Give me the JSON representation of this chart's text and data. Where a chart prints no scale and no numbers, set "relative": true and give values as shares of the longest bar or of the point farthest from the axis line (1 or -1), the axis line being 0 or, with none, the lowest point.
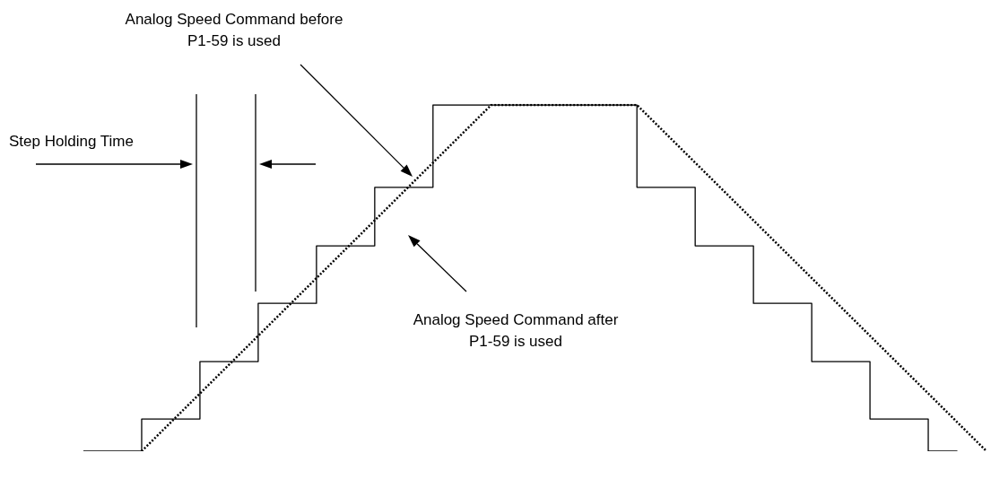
{
  "chart_data": {
    "type": "step",
    "relative": true,
    "grid": false,
    "legend": false,
    "marker": "none",
    "categories": [
      null,
      null,
      null,
      null,
      null,
      null,
      null,
      null,
      null,
      null,
      null,
      null,
      null,
      null,
      null,
      null,
      null,
      null,
      null,
      null,
      null,
      null,
      null,
      null,
      null,
      null,
      null,
      null,
      null,
      null,
      null,
      null
    ],
    "series": [
      {
        "color": "#000000",
        "line_style": "solid",
        "values": [
          0,
          0,
          0.093,
          0.093,
          0.259,
          0.259,
          0.427,
          0.427,
          0.593,
          0.593,
          0.762,
          0.762,
          1,
          1,
          1,
          1,
          1,
          1,
          1,
          0.762,
          0.762,
          0.593,
          0.593,
          0.427,
          0.427,
          0.259,
          0.259,
          0.093,
          0.093,
          0,
          0,
          null
        ]
      },
      {
        "type": "line",
        "color": "#000000",
        "line_style": "dotted",
        "values": [
          null,
          null,
          0,
          null,
          null,
          null,
          null,
          null,
          null,
          null,
          null,
          null,
          null,
          null,
          1,
          null,
          null,
          null,
          null,
          1,
          null,
          null,
          null,
          null,
          null,
          null,
          null,
          null,
          null,
          null,
          null,
          0
        ]
      }
    ],
    "annotations": [
      "Analog Speed Command before P1-59 is used",
      "Step Holding Time",
      "Analog Speed Command after P1-59 is used"
    ]
  }
}
